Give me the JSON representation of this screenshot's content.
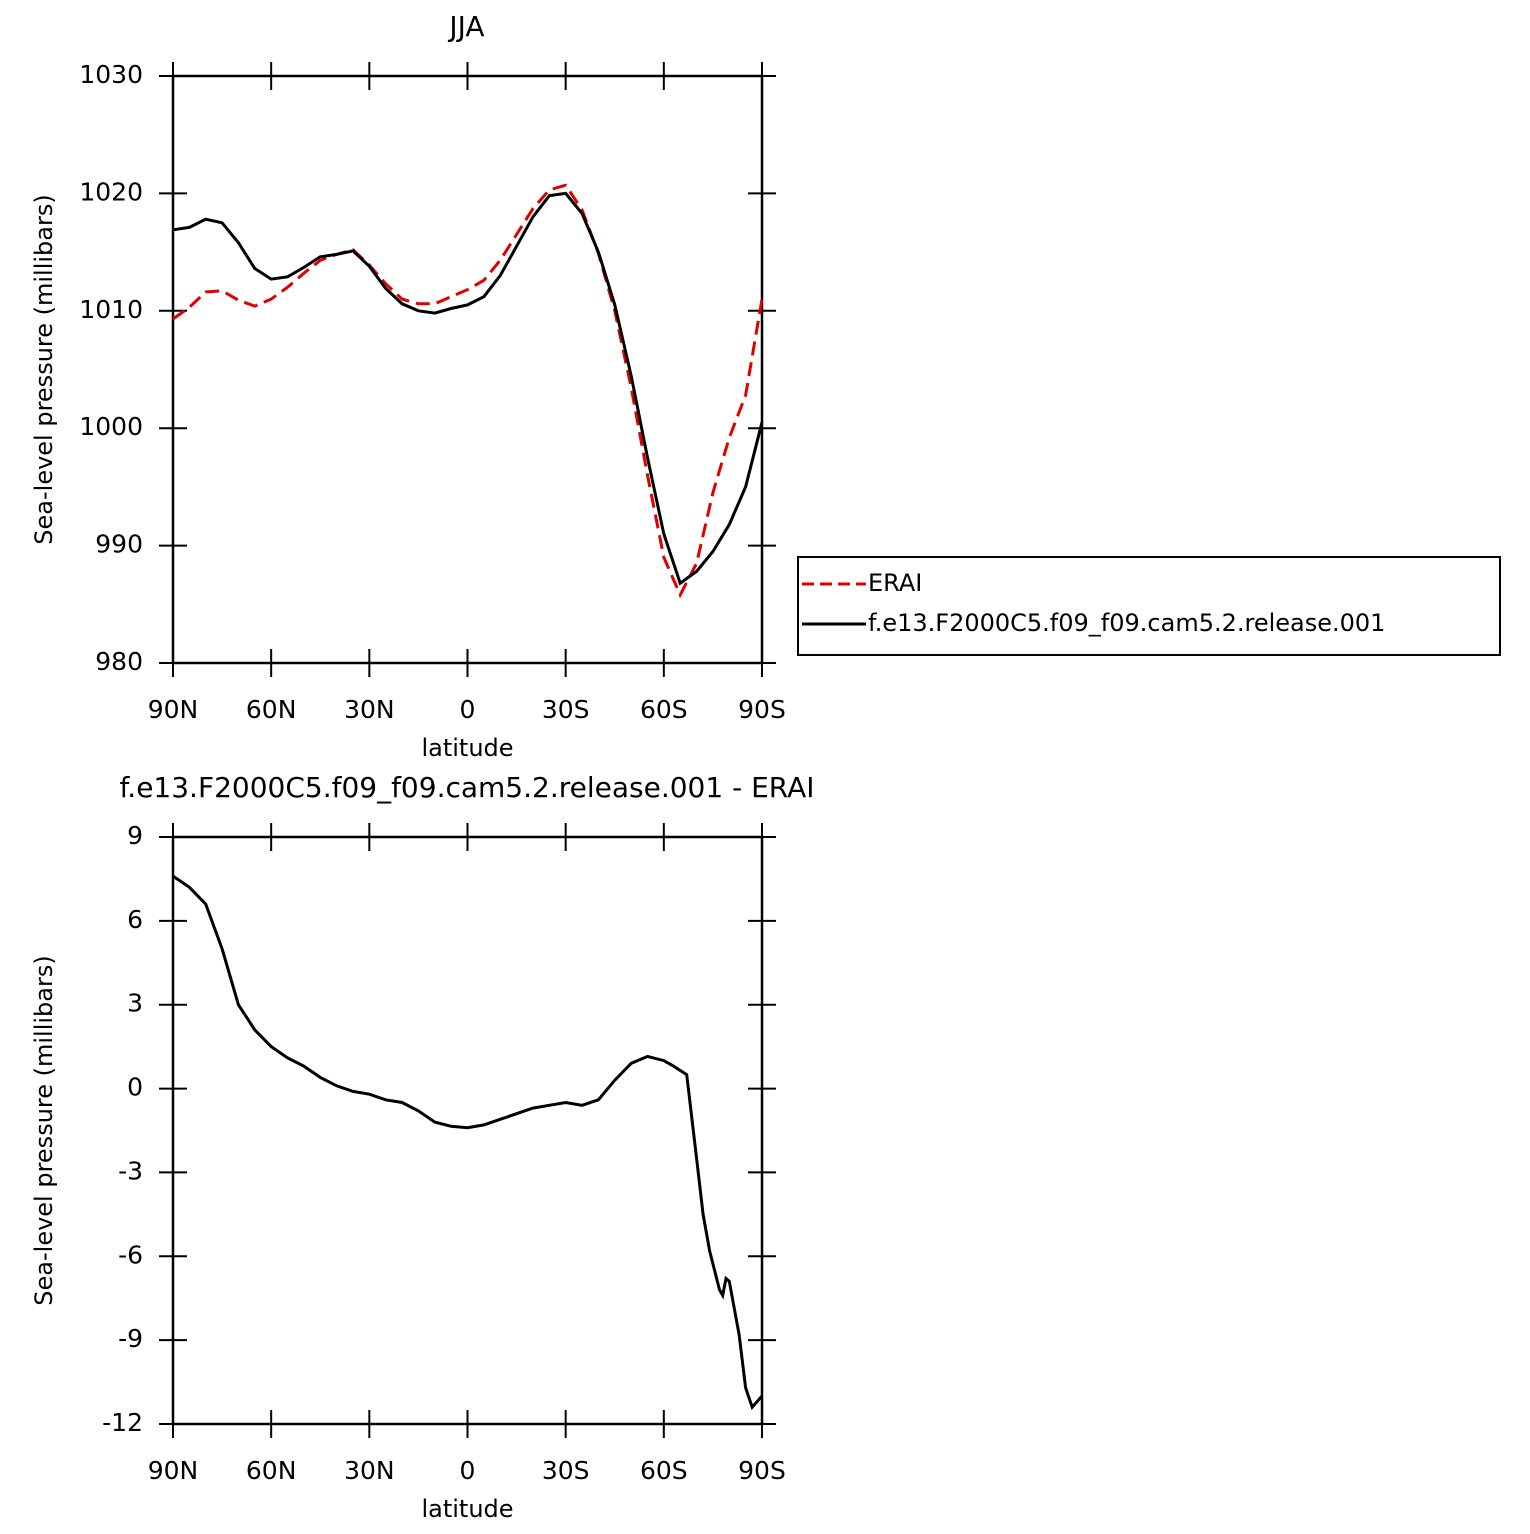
{
  "chart_data": [
    {
      "type": "line",
      "title": "JJA",
      "xlabel": "latitude",
      "ylabel": "Sea-level pressure (millibars)",
      "x": [
        90,
        85,
        80,
        75,
        70,
        65,
        60,
        55,
        50,
        45,
        40,
        35,
        30,
        25,
        20,
        15,
        10,
        5,
        0,
        -5,
        -10,
        -15,
        -20,
        -25,
        -30,
        -35,
        -40,
        -45,
        -50,
        -55,
        -60,
        -65,
        -70,
        -75,
        -80,
        -85,
        -90
      ],
      "xlim": [
        90,
        -90
      ],
      "xticks": [
        {
          "value": 90,
          "label": "90N"
        },
        {
          "value": 60,
          "label": "60N"
        },
        {
          "value": 30,
          "label": "30N"
        },
        0,
        {
          "value": -30,
          "label": "30S"
        },
        {
          "value": -60,
          "label": "60S"
        },
        {
          "value": -90,
          "label": "90S"
        }
      ],
      "ylim": [
        980,
        1030
      ],
      "yticks": [
        980,
        990,
        1000,
        1010,
        1020,
        1030
      ],
      "legend": "right",
      "series": [
        {
          "name": "ERAI",
          "color": "#e00000",
          "linestyle": "dashed",
          "values": [
            1009.3,
            1010.3,
            1011.6,
            1011.7,
            1010.9,
            1010.4,
            1011.0,
            1012.0,
            1013.2,
            1014.3,
            1014.8,
            1015.2,
            1013.9,
            1012.3,
            1011.0,
            1010.6,
            1010.6,
            1011.2,
            1011.8,
            1012.6,
            1014.3,
            1016.5,
            1018.7,
            1020.3,
            1020.7,
            1018.6,
            1014.9,
            1010.0,
            1003.5,
            996.0,
            989.0,
            985.8,
            988.5,
            994.5,
            999.2,
            1002.8,
            1011.0
          ]
        },
        {
          "name": "f.e13.F2000C5.f09_f09.cam5.2.release.001",
          "color": "#000000",
          "linestyle": "solid",
          "values": [
            1016.9,
            1017.1,
            1017.8,
            1017.5,
            1015.8,
            1013.6,
            1012.7,
            1012.9,
            1013.7,
            1014.6,
            1014.8,
            1015.1,
            1013.8,
            1011.9,
            1010.6,
            1010.0,
            1009.8,
            1010.2,
            1010.5,
            1011.2,
            1013.0,
            1015.5,
            1018.0,
            1019.8,
            1020.0,
            1018.3,
            1015.0,
            1010.5,
            1004.5,
            997.5,
            991.0,
            986.8,
            987.8,
            989.5,
            991.8,
            995.0,
            1000.5
          ]
        }
      ]
    },
    {
      "type": "line",
      "title": "f.e13.F2000C5.f09_f09.cam5.2.release.001 - ERAI",
      "xlabel": "latitude",
      "ylabel": "Sea-level pressure (millibars)",
      "x": [
        90,
        85,
        80,
        75,
        70,
        65,
        60,
        55,
        50,
        45,
        40,
        35,
        30,
        25,
        20,
        15,
        10,
        5,
        0,
        -5,
        -10,
        -15,
        -20,
        -25,
        -30,
        -35,
        -40,
        -45,
        -50,
        -55,
        -60,
        -63,
        -67,
        -70,
        -72,
        -74,
        -77,
        -78,
        -79,
        -80,
        -83,
        -85,
        -87,
        -90
      ],
      "values": [
        7.6,
        7.2,
        6.6,
        5.0,
        3.0,
        2.1,
        1.5,
        1.1,
        0.8,
        0.4,
        0.1,
        -0.1,
        -0.2,
        -0.4,
        -0.5,
        -0.8,
        -1.2,
        -1.35,
        -1.4,
        -1.3,
        -1.1,
        -0.9,
        -0.7,
        -0.6,
        -0.5,
        -0.6,
        -0.4,
        0.3,
        0.9,
        1.15,
        1.0,
        0.8,
        0.5,
        -2.5,
        -4.5,
        -5.8,
        -7.2,
        -7.4,
        -6.8,
        -6.9,
        -8.8,
        -10.7,
        -11.4,
        -11.0
      ],
      "color": "#000000",
      "xlim": [
        90,
        -90
      ],
      "xticks": [
        {
          "value": 90,
          "label": "90N"
        },
        {
          "value": 60,
          "label": "60N"
        },
        {
          "value": 30,
          "label": "30N"
        },
        0,
        {
          "value": -30,
          "label": "30S"
        },
        {
          "value": -60,
          "label": "60S"
        },
        {
          "value": -90,
          "label": "90S"
        }
      ],
      "ylim": [
        -12,
        9
      ],
      "yticks": [
        -12,
        -9,
        -6,
        -3,
        0,
        3,
        6,
        9
      ]
    }
  ]
}
